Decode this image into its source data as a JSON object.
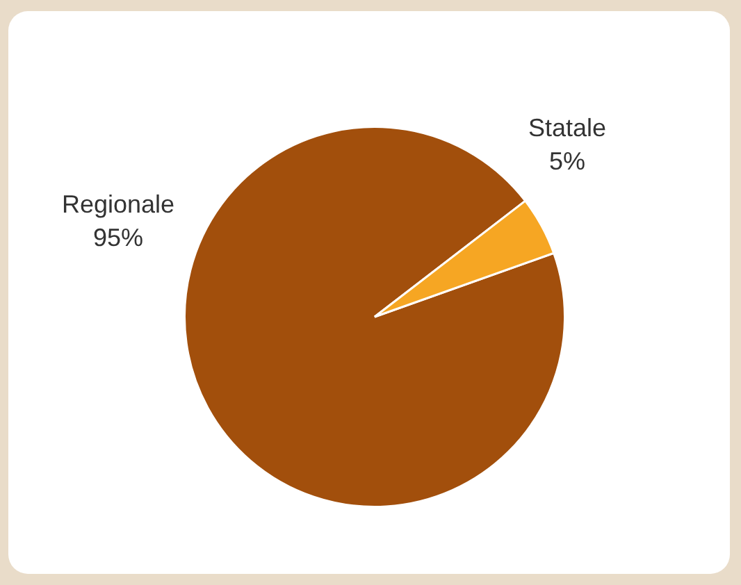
{
  "chart_data": {
    "type": "pie",
    "categories": [
      "Regionale",
      "Statale"
    ],
    "values": [
      95,
      5
    ],
    "value_labels": [
      "95%",
      "5%"
    ],
    "colors": [
      "#a24f0c",
      "#f6a623"
    ],
    "legend": false
  }
}
